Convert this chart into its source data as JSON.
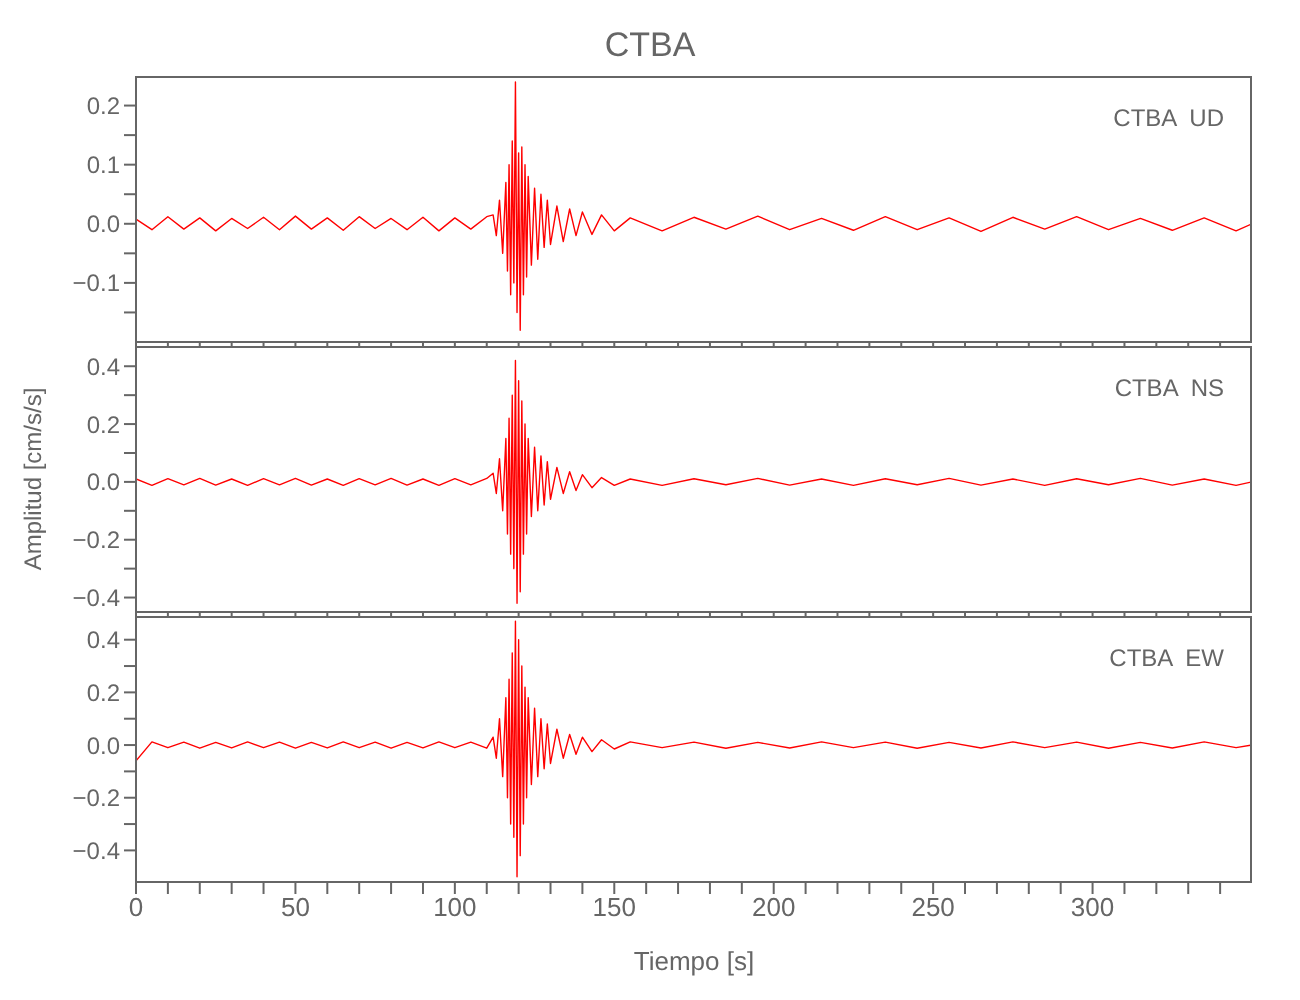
{
  "chart_data": [
    {
      "type": "line",
      "title": "CTBA",
      "annotations": [
        "CTBA  UD"
      ],
      "tick_labels": "y",
      "xlim": [
        0,
        350
      ],
      "xticks": [
        {
          "value": 0,
          "label": null
        },
        {
          "value": 10,
          "label": null
        },
        {
          "value": 20,
          "label": null
        },
        {
          "value": 30,
          "label": null
        },
        {
          "value": 40,
          "label": null
        },
        {
          "value": 50,
          "label": null
        },
        {
          "value": 60,
          "label": null
        },
        {
          "value": 70,
          "label": null
        },
        {
          "value": 80,
          "label": null
        },
        {
          "value": 90,
          "label": null
        },
        {
          "value": 100,
          "label": null
        },
        {
          "value": 110,
          "label": null
        },
        {
          "value": 120,
          "label": null
        },
        {
          "value": 130,
          "label": null
        },
        {
          "value": 140,
          "label": null
        },
        {
          "value": 150,
          "label": null
        },
        {
          "value": 160,
          "label": null
        },
        {
          "value": 170,
          "label": null
        },
        {
          "value": 180,
          "label": null
        },
        {
          "value": 190,
          "label": null
        },
        {
          "value": 200,
          "label": null
        },
        {
          "value": 210,
          "label": null
        },
        {
          "value": 220,
          "label": null
        },
        {
          "value": 230,
          "label": null
        },
        {
          "value": 240,
          "label": null
        },
        {
          "value": 250,
          "label": null
        },
        {
          "value": 260,
          "label": null
        },
        {
          "value": 270,
          "label": null
        },
        {
          "value": 280,
          "label": null
        },
        {
          "value": 290,
          "label": null
        },
        {
          "value": 300,
          "label": null
        },
        {
          "value": 310,
          "label": null
        },
        {
          "value": 320,
          "label": null
        },
        {
          "value": 330,
          "label": null
        },
        {
          "value": 340,
          "label": null
        }
      ],
      "ylim": [
        -0.2,
        0.25
      ],
      "yticks": [
        {
          "value": -0.15,
          "label": null
        },
        {
          "value": -0.1,
          "label": "−0.1"
        },
        {
          "value": -0.05,
          "label": null
        },
        {
          "value": 0,
          "label": "0.0"
        },
        {
          "value": 0.05,
          "label": null
        },
        {
          "value": 0.1,
          "label": "0.1"
        },
        {
          "value": 0.15,
          "label": null
        },
        {
          "value": 0.2,
          "label": "0.2"
        }
      ],
      "x": [
        0,
        5,
        10,
        15,
        20,
        25,
        30,
        35,
        40,
        45,
        50,
        55,
        60,
        65,
        70,
        75,
        80,
        85,
        90,
        95,
        100,
        105,
        110,
        112,
        113,
        114,
        115,
        116,
        116.5,
        117,
        117.5,
        118,
        118.5,
        119,
        119.5,
        120,
        120.5,
        121,
        121.5,
        122,
        122.5,
        123,
        124,
        125,
        126,
        127,
        128,
        129,
        130,
        132,
        134,
        136,
        138,
        140,
        143,
        146,
        150,
        155,
        165,
        175,
        185,
        195,
        205,
        215,
        225,
        235,
        245,
        255,
        265,
        275,
        285,
        295,
        305,
        315,
        325,
        335,
        345,
        350
      ],
      "series": [
        {
          "color": "#ff0000",
          "values": [
            0.008,
            -0.01,
            0.012,
            -0.009,
            0.01,
            -0.012,
            0.009,
            -0.008,
            0.011,
            -0.01,
            0.013,
            -0.009,
            0.01,
            -0.011,
            0.012,
            -0.008,
            0.009,
            -0.01,
            0.011,
            -0.012,
            0.01,
            -0.009,
            0.012,
            0.015,
            -0.02,
            0.04,
            -0.05,
            0.07,
            -0.08,
            0.1,
            -0.12,
            0.14,
            -0.1,
            0.24,
            -0.15,
            0.12,
            -0.18,
            0.13,
            -0.12,
            0.1,
            -0.09,
            0.08,
            -0.07,
            0.06,
            -0.06,
            0.05,
            -0.04,
            0.04,
            -0.035,
            0.03,
            -0.03,
            0.025,
            -0.02,
            0.02,
            -0.018,
            0.015,
            -0.012,
            0.01,
            -0.012,
            0.011,
            -0.009,
            0.013,
            -0.01,
            0.009,
            -0.011,
            0.012,
            -0.01,
            0.01,
            -0.013,
            0.011,
            -0.009,
            0.012,
            -0.01,
            0.009,
            -0.011,
            0.01,
            -0.012,
            0.0
          ]
        }
      ]
    },
    {
      "type": "line",
      "ylabel": "Amplitud  [cm/s/s]",
      "annotations": [
        "CTBA  NS"
      ],
      "tick_labels": "y",
      "xlim": [
        0,
        350
      ],
      "xticks": [
        {
          "value": 0,
          "label": null
        },
        {
          "value": 10,
          "label": null
        },
        {
          "value": 20,
          "label": null
        },
        {
          "value": 30,
          "label": null
        },
        {
          "value": 40,
          "label": null
        },
        {
          "value": 50,
          "label": null
        },
        {
          "value": 60,
          "label": null
        },
        {
          "value": 70,
          "label": null
        },
        {
          "value": 80,
          "label": null
        },
        {
          "value": 90,
          "label": null
        },
        {
          "value": 100,
          "label": null
        },
        {
          "value": 110,
          "label": null
        },
        {
          "value": 120,
          "label": null
        },
        {
          "value": 130,
          "label": null
        },
        {
          "value": 140,
          "label": null
        },
        {
          "value": 150,
          "label": null
        },
        {
          "value": 160,
          "label": null
        },
        {
          "value": 170,
          "label": null
        },
        {
          "value": 180,
          "label": null
        },
        {
          "value": 190,
          "label": null
        },
        {
          "value": 200,
          "label": null
        },
        {
          "value": 210,
          "label": null
        },
        {
          "value": 220,
          "label": null
        },
        {
          "value": 230,
          "label": null
        },
        {
          "value": 240,
          "label": null
        },
        {
          "value": 250,
          "label": null
        },
        {
          "value": 260,
          "label": null
        },
        {
          "value": 270,
          "label": null
        },
        {
          "value": 280,
          "label": null
        },
        {
          "value": 290,
          "label": null
        },
        {
          "value": 300,
          "label": null
        },
        {
          "value": 310,
          "label": null
        },
        {
          "value": 320,
          "label": null
        },
        {
          "value": 330,
          "label": null
        },
        {
          "value": 340,
          "label": null
        }
      ],
      "ylim": [
        -0.45,
        0.47
      ],
      "yticks": [
        {
          "value": -0.4,
          "label": "−0.4"
        },
        {
          "value": -0.3,
          "label": null
        },
        {
          "value": -0.2,
          "label": "−0.2"
        },
        {
          "value": -0.1,
          "label": null
        },
        {
          "value": 0,
          "label": "0.0"
        },
        {
          "value": 0.1,
          "label": null
        },
        {
          "value": 0.2,
          "label": "0.2"
        },
        {
          "value": 0.3,
          "label": null
        },
        {
          "value": 0.4,
          "label": "0.4"
        }
      ],
      "x": [
        0,
        5,
        10,
        15,
        20,
        25,
        30,
        35,
        40,
        45,
        50,
        55,
        60,
        65,
        70,
        75,
        80,
        85,
        90,
        95,
        100,
        105,
        110,
        112,
        113,
        114,
        115,
        116,
        116.5,
        117,
        117.5,
        118,
        118.5,
        119,
        119.5,
        120,
        120.5,
        121,
        121.5,
        122,
        122.5,
        123,
        124,
        125,
        126,
        127,
        128,
        129,
        130,
        132,
        134,
        136,
        138,
        140,
        143,
        146,
        150,
        155,
        165,
        175,
        185,
        195,
        205,
        215,
        225,
        235,
        245,
        255,
        265,
        275,
        285,
        295,
        305,
        315,
        325,
        335,
        345,
        350
      ],
      "series": [
        {
          "color": "#ff0000",
          "values": [
            0.01,
            -0.012,
            0.011,
            -0.01,
            0.012,
            -0.011,
            0.01,
            -0.012,
            0.011,
            -0.01,
            0.012,
            -0.011,
            0.01,
            -0.012,
            0.011,
            -0.01,
            0.012,
            -0.011,
            0.01,
            -0.012,
            0.011,
            -0.01,
            0.012,
            0.03,
            -0.04,
            0.08,
            -0.1,
            0.15,
            -0.18,
            0.22,
            -0.25,
            0.3,
            -0.3,
            0.42,
            -0.42,
            0.35,
            -0.38,
            0.28,
            -0.25,
            0.2,
            -0.18,
            0.15,
            -0.12,
            0.12,
            -0.1,
            0.09,
            -0.08,
            0.07,
            -0.06,
            0.05,
            -0.04,
            0.035,
            -0.03,
            0.025,
            -0.02,
            0.015,
            -0.012,
            0.01,
            -0.012,
            0.011,
            -0.01,
            0.012,
            -0.011,
            0.01,
            -0.012,
            0.011,
            -0.01,
            0.012,
            -0.011,
            0.01,
            -0.012,
            0.011,
            -0.01,
            0.012,
            -0.011,
            0.01,
            -0.012,
            0.0
          ]
        }
      ]
    },
    {
      "type": "line",
      "xlabel": "Tiempo  [s]",
      "annotations": [
        "CTBA  EW"
      ],
      "xlim": [
        0,
        350
      ],
      "xticks": [
        0,
        {
          "value": 10,
          "label": null
        },
        {
          "value": 20,
          "label": null
        },
        {
          "value": 30,
          "label": null
        },
        {
          "value": 40,
          "label": null
        },
        50,
        {
          "value": 60,
          "label": null
        },
        {
          "value": 70,
          "label": null
        },
        {
          "value": 80,
          "label": null
        },
        {
          "value": 90,
          "label": null
        },
        100,
        {
          "value": 110,
          "label": null
        },
        {
          "value": 120,
          "label": null
        },
        {
          "value": 130,
          "label": null
        },
        {
          "value": 140,
          "label": null
        },
        150,
        {
          "value": 160,
          "label": null
        },
        {
          "value": 170,
          "label": null
        },
        {
          "value": 180,
          "label": null
        },
        {
          "value": 190,
          "label": null
        },
        200,
        {
          "value": 210,
          "label": null
        },
        {
          "value": 220,
          "label": null
        },
        {
          "value": 230,
          "label": null
        },
        {
          "value": 240,
          "label": null
        },
        250,
        {
          "value": 260,
          "label": null
        },
        {
          "value": 270,
          "label": null
        },
        {
          "value": 280,
          "label": null
        },
        {
          "value": 290,
          "label": null
        },
        300,
        {
          "value": 310,
          "label": null
        },
        {
          "value": 320,
          "label": null
        },
        {
          "value": 330,
          "label": null
        },
        {
          "value": 340,
          "label": null
        }
      ],
      "ylim": [
        -0.52,
        0.49
      ],
      "yticks": [
        {
          "value": -0.4,
          "label": "−0.4"
        },
        {
          "value": -0.3,
          "label": null
        },
        {
          "value": -0.2,
          "label": "−0.2"
        },
        {
          "value": -0.1,
          "label": null
        },
        {
          "value": 0,
          "label": "0.0"
        },
        {
          "value": 0.1,
          "label": null
        },
        {
          "value": 0.2,
          "label": "0.2"
        },
        {
          "value": 0.3,
          "label": null
        },
        {
          "value": 0.4,
          "label": "0.4"
        }
      ],
      "x": [
        0,
        5,
        10,
        15,
        20,
        25,
        30,
        35,
        40,
        45,
        50,
        55,
        60,
        65,
        70,
        75,
        80,
        85,
        90,
        95,
        100,
        105,
        110,
        112,
        113,
        114,
        115,
        116,
        116.5,
        117,
        117.5,
        118,
        118.5,
        119,
        119.5,
        120,
        120.5,
        121,
        121.5,
        122,
        122.5,
        123,
        124,
        125,
        126,
        127,
        128,
        129,
        130,
        132,
        134,
        136,
        138,
        140,
        143,
        146,
        150,
        155,
        165,
        175,
        185,
        195,
        205,
        215,
        225,
        235,
        245,
        255,
        265,
        275,
        285,
        295,
        305,
        315,
        325,
        335,
        345,
        350
      ],
      "series": [
        {
          "color": "#ff0000",
          "values": [
            -0.06,
            0.012,
            -0.01,
            0.011,
            -0.012,
            0.01,
            -0.011,
            0.012,
            -0.01,
            0.011,
            -0.012,
            0.01,
            -0.011,
            0.012,
            -0.01,
            0.011,
            -0.012,
            0.01,
            -0.011,
            0.012,
            -0.01,
            0.011,
            -0.012,
            0.03,
            -0.05,
            0.1,
            -0.12,
            0.18,
            -0.2,
            0.25,
            -0.3,
            0.35,
            -0.35,
            0.47,
            -0.5,
            0.4,
            -0.42,
            0.3,
            -0.3,
            0.22,
            -0.2,
            0.18,
            -0.15,
            0.14,
            -0.12,
            0.1,
            -0.09,
            0.08,
            -0.07,
            0.06,
            -0.05,
            0.04,
            -0.035,
            0.03,
            -0.025,
            0.02,
            -0.015,
            0.012,
            -0.01,
            0.011,
            -0.012,
            0.01,
            -0.011,
            0.012,
            -0.01,
            0.011,
            -0.012,
            0.01,
            -0.011,
            0.012,
            -0.01,
            0.011,
            -0.012,
            0.01,
            -0.011,
            0.012,
            -0.01,
            0.0
          ]
        }
      ]
    }
  ]
}
